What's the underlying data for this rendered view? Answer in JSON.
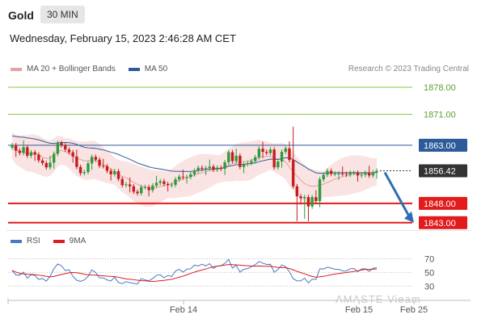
{
  "header": {
    "title": "Gold",
    "timeframe": "30 MIN",
    "datetime": "Wednesday, February 15, 2023 2:46:28 AM CET"
  },
  "legend": {
    "items": [
      {
        "label": "MA 20 + Bollinger Bands",
        "color": "#e8a0a0"
      },
      {
        "label": "MA 50",
        "color": "#2d5b9a"
      }
    ],
    "credit": "Research © 2023 Trading Central"
  },
  "rsi_legend": {
    "items": [
      {
        "label": "RSI",
        "color": "#4a78c2"
      },
      {
        "label": "9MA",
        "color": "#d81e1e"
      }
    ]
  },
  "watermark": "AMASTE Vieam",
  "colors": {
    "up": "#2e9b3c",
    "down": "#c41e1e",
    "resistance": "#8dc63f",
    "resistance_text": "#5aa02c",
    "support": "#e21b1b",
    "ma50": "#2d5b9a",
    "bollinger_fill": "#f8d9d9",
    "ma20": "#e8a0a0",
    "arrow": "#2d6db5",
    "rsi": "#4a78c2",
    "rsi_ma": "#d81e1e"
  },
  "chart_data": [
    {
      "type": "candlestick",
      "y_range": [
        1841.5,
        1880.5
      ],
      "x_ticks": [
        "Feb 14",
        "Feb 15",
        "Feb 25"
      ],
      "levels": [
        {
          "value": 1878.0,
          "label": "1878.00",
          "kind": "resistance"
        },
        {
          "value": 1871.0,
          "label": "1871.00",
          "kind": "resistance"
        },
        {
          "value": 1863.0,
          "label": "1863.00",
          "kind": "ma50"
        },
        {
          "value": 1856.42,
          "label": "1856.42",
          "kind": "current"
        },
        {
          "value": 1848.0,
          "label": "1848.00",
          "kind": "support"
        },
        {
          "value": 1843.0,
          "label": "1843.00",
          "kind": "support"
        }
      ],
      "close": [
        1863.0,
        1861.6,
        1861.0,
        1862.5,
        1860.3,
        1861.2,
        1860.6,
        1859.1,
        1858.4,
        1857.3,
        1858.5,
        1860.8,
        1863.6,
        1863.0,
        1861.9,
        1861.2,
        1860.1,
        1857.4,
        1855.8,
        1856.1,
        1858.3,
        1860.0,
        1859.3,
        1857.7,
        1857.6,
        1856.4,
        1855.5,
        1856.3,
        1854.3,
        1852.7,
        1852.9,
        1852.4,
        1851.0,
        1850.6,
        1852.2,
        1852.2,
        1851.4,
        1852.6,
        1853.3,
        1853.7,
        1853.0,
        1852.7,
        1852.8,
        1854.2,
        1854.9,
        1854.7,
        1854.8,
        1855.5,
        1856.4,
        1857.2,
        1856.9,
        1857.1,
        1857.5,
        1856.7,
        1857.2,
        1856.9,
        1858.6,
        1861.2,
        1858.9,
        1860.3,
        1857.4,
        1858.1,
        1858.4,
        1858.9,
        1859.9,
        1862.1,
        1861.3,
        1861.0,
        1861.9,
        1857.3,
        1858.8,
        1861.3,
        1862.2,
        1859.2,
        1852.4,
        1849.8,
        1849.3,
        1849.6,
        1847.2,
        1849.6,
        1848.6,
        1854.2,
        1855.4,
        1856.4,
        1855.6,
        1855.7,
        1855.7,
        1855.6,
        1855.4,
        1855.9,
        1855.9,
        1855.2,
        1855.4,
        1855.9,
        1855.2,
        1856.0,
        1856.4
      ],
      "ma20": [
        1863.0,
        1861.8,
        1861.5,
        1861.2,
        1860.9,
        1861.0,
        1860.8,
        1860.5,
        1860.0,
        1859.6,
        1859.7,
        1860.4,
        1861.5,
        1861.7,
        1861.3,
        1860.9,
        1860.2,
        1859.6,
        1859.3,
        1859.0,
        1859.0,
        1859.2,
        1859.1,
        1858.6,
        1858.0,
        1857.5,
        1856.9,
        1856.3,
        1855.5,
        1854.9,
        1854.6,
        1854.0,
        1853.4,
        1852.9,
        1852.5,
        1852.2,
        1852.0,
        1851.9,
        1852.1,
        1852.4,
        1852.6,
        1852.8,
        1853.1,
        1853.5,
        1854.0,
        1854.3,
        1854.6,
        1854.9,
        1855.3,
        1855.7,
        1855.9,
        1856.1,
        1856.4,
        1856.6,
        1856.8,
        1857.0,
        1857.5,
        1857.9,
        1858.2,
        1858.6,
        1858.7,
        1858.8,
        1858.9,
        1859.1,
        1859.5,
        1859.9,
        1860.0,
        1860.1,
        1860.2,
        1859.8,
        1859.5,
        1859.3,
        1858.7,
        1857.4,
        1856.2,
        1855.0,
        1854.0,
        1853.1,
        1852.6,
        1852.4,
        1852.5,
        1852.7,
        1853.0,
        1853.4,
        1853.8,
        1854.3,
        1854.6,
        1854.9,
        1855.1,
        1855.3,
        1855.5,
        1855.6,
        1855.7,
        1855.8,
        1855.9,
        1856.0,
        1856.2
      ],
      "rsi": [
        52.9,
        46.2,
        46.1,
        50.4,
        41.6,
        46.7,
        45.5,
        39.8,
        41.2,
        37.2,
        44.6,
        55.4,
        62.4,
        59.8,
        52.6,
        54.0,
        44.3,
        38.6,
        36.9,
        39.0,
        44.2,
        53.8,
        49.9,
        42.2,
        41.9,
        39.1,
        37.5,
        43.0,
        35.2,
        33.6,
        36.5,
        34.9,
        34.2,
        33.1,
        41.2,
        39.0,
        37.9,
        41.1,
        45.8,
        46.4,
        42.3,
        45.6,
        44.0,
        52.1,
        54.5,
        50.5,
        54.8,
        55.4,
        60.7,
        59.5,
        62.1,
        59.6,
        62.8,
        55.9,
        59.4,
        59.8,
        63.4,
        69.0,
        56.4,
        60.6,
        50.5,
        54.7,
        55.6,
        58.4,
        61.3,
        66.0,
        63.5,
        61.7,
        61.9,
        50.3,
        54.3,
        61.0,
        58.6,
        51.0,
        40.7,
        37.8,
        37.6,
        41.7,
        34.6,
        40.2,
        39.7,
        55.3,
        55.1,
        57.5,
        56.4,
        54.7,
        54.5,
        52.4,
        52.2,
        55.3,
        55.8,
        51.1,
        55.1,
        55.5,
        51.5,
        56.2,
        56.8
      ],
      "rsi_ma": [
        52.9,
        50.5,
        48.7,
        48.0,
        47.2,
        47.2,
        46.8,
        46.1,
        45.3,
        44.3,
        43.5,
        44.1,
        45.7,
        47.1,
        48.2,
        49.4,
        49.9,
        49.6,
        48.7,
        47.4,
        46.5,
        46.2,
        46.0,
        45.6,
        45.0,
        44.5,
        44.2,
        44.0,
        43.0,
        41.6,
        40.6,
        39.9,
        39.3,
        38.6,
        38.0,
        37.7,
        37.2,
        36.9,
        37.1,
        37.9,
        38.4,
        39.2,
        40.0,
        41.5,
        43.1,
        44.6,
        46.5,
        48.6,
        50.5,
        52.1,
        53.6,
        55.1,
        56.9,
        58.3,
        59.2,
        59.9,
        60.8,
        61.5,
        61.4,
        61.1,
        60.7,
        60.2,
        59.8,
        59.4,
        59.2,
        59.4,
        59.1,
        58.9,
        59.1,
        58.1,
        57.3,
        57.1,
        57.0,
        55.8,
        53.7,
        51.6,
        49.7,
        48.0,
        45.9,
        44.1,
        43.1,
        43.6,
        44.3,
        45.5,
        46.6,
        47.7,
        48.4,
        49.1,
        49.8,
        50.6,
        51.5,
        52.6,
        53.5,
        54.4,
        54.5,
        54.8,
        55.0
      ],
      "rsi_ticks": [
        70,
        50,
        30
      ],
      "rsi_range": [
        15,
        80
      ]
    }
  ]
}
